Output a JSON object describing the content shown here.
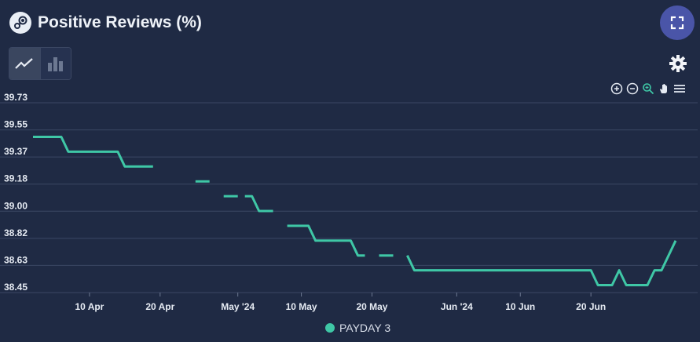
{
  "header": {
    "title": "Positive Reviews (%)"
  },
  "icons": {
    "logo": "steam-logo-icon",
    "fullscreen": "fullscreen-icon",
    "line_view": "line-chart-icon",
    "bar_view": "bar-chart-icon",
    "settings": "gear-icon",
    "zoom_in": "zoom-in-icon",
    "zoom_out": "zoom-out-icon",
    "zoom_select": "magnifier-zoom-icon",
    "pan": "hand-pan-icon",
    "menu": "menu-icon"
  },
  "colors": {
    "background": "#1f2a44",
    "series": "#3fc7a6",
    "grid": "#3b4763",
    "accent_button": "#4a55a8"
  },
  "chart_data": {
    "type": "line",
    "ylim": [
      38.45,
      39.73
    ],
    "yticks": [
      "39.73",
      "39.55",
      "39.37",
      "39.18",
      "39.00",
      "38.82",
      "38.63",
      "38.45"
    ],
    "xlim": [
      "2024-04-02",
      "2024-07-04"
    ],
    "xticks": [
      {
        "label": "10 Apr",
        "date": "2024-04-10"
      },
      {
        "label": "20 Apr",
        "date": "2024-04-20"
      },
      {
        "label": "May '24",
        "date": "2024-05-01"
      },
      {
        "label": "10 May",
        "date": "2024-05-10"
      },
      {
        "label": "20 May",
        "date": "2024-05-20"
      },
      {
        "label": "Jun '24",
        "date": "2024-06-01"
      },
      {
        "label": "10 Jun",
        "date": "2024-06-10"
      },
      {
        "label": "20 Jun",
        "date": "2024-06-20"
      }
    ],
    "grid": true,
    "legend": "bottom-center",
    "series": [
      {
        "name": "PAYDAY 3",
        "color": "#3fc7a6",
        "segments": [
          [
            [
              "2024-04-02",
              39.5
            ],
            [
              "2024-04-06",
              39.5
            ],
            [
              "2024-04-07",
              39.4
            ],
            [
              "2024-04-13",
              39.4
            ],
            [
              "2024-04-14",
              39.4
            ],
            [
              "2024-04-15",
              39.3
            ],
            [
              "2024-04-19",
              39.3
            ]
          ],
          [
            [
              "2024-04-25",
              39.2
            ],
            [
              "2024-04-27",
              39.2
            ]
          ],
          [
            [
              "2024-04-29",
              39.1
            ],
            [
              "2024-05-01",
              39.1
            ]
          ],
          [
            [
              "2024-05-02",
              39.1
            ],
            [
              "2024-05-03",
              39.1
            ],
            [
              "2024-05-04",
              39.0
            ],
            [
              "2024-05-06",
              39.0
            ]
          ],
          [
            [
              "2024-05-08",
              38.9
            ],
            [
              "2024-05-11",
              38.9
            ],
            [
              "2024-05-12",
              38.8
            ],
            [
              "2024-05-17",
              38.8
            ],
            [
              "2024-05-18",
              38.7
            ],
            [
              "2024-05-19",
              38.7
            ]
          ],
          [
            [
              "2024-05-21",
              38.7
            ],
            [
              "2024-05-23",
              38.7
            ]
          ],
          [
            [
              "2024-05-25",
              38.7
            ],
            [
              "2024-05-26",
              38.6
            ],
            [
              "2024-06-19",
              38.6
            ],
            [
              "2024-06-20",
              38.6
            ],
            [
              "2024-06-21",
              38.5
            ],
            [
              "2024-06-23",
              38.5
            ],
            [
              "2024-06-24",
              38.6
            ],
            [
              "2024-06-25",
              38.5
            ],
            [
              "2024-06-28",
              38.5
            ],
            [
              "2024-06-29",
              38.6
            ],
            [
              "2024-06-30",
              38.6
            ],
            [
              "2024-07-02",
              38.8
            ]
          ]
        ]
      }
    ]
  }
}
